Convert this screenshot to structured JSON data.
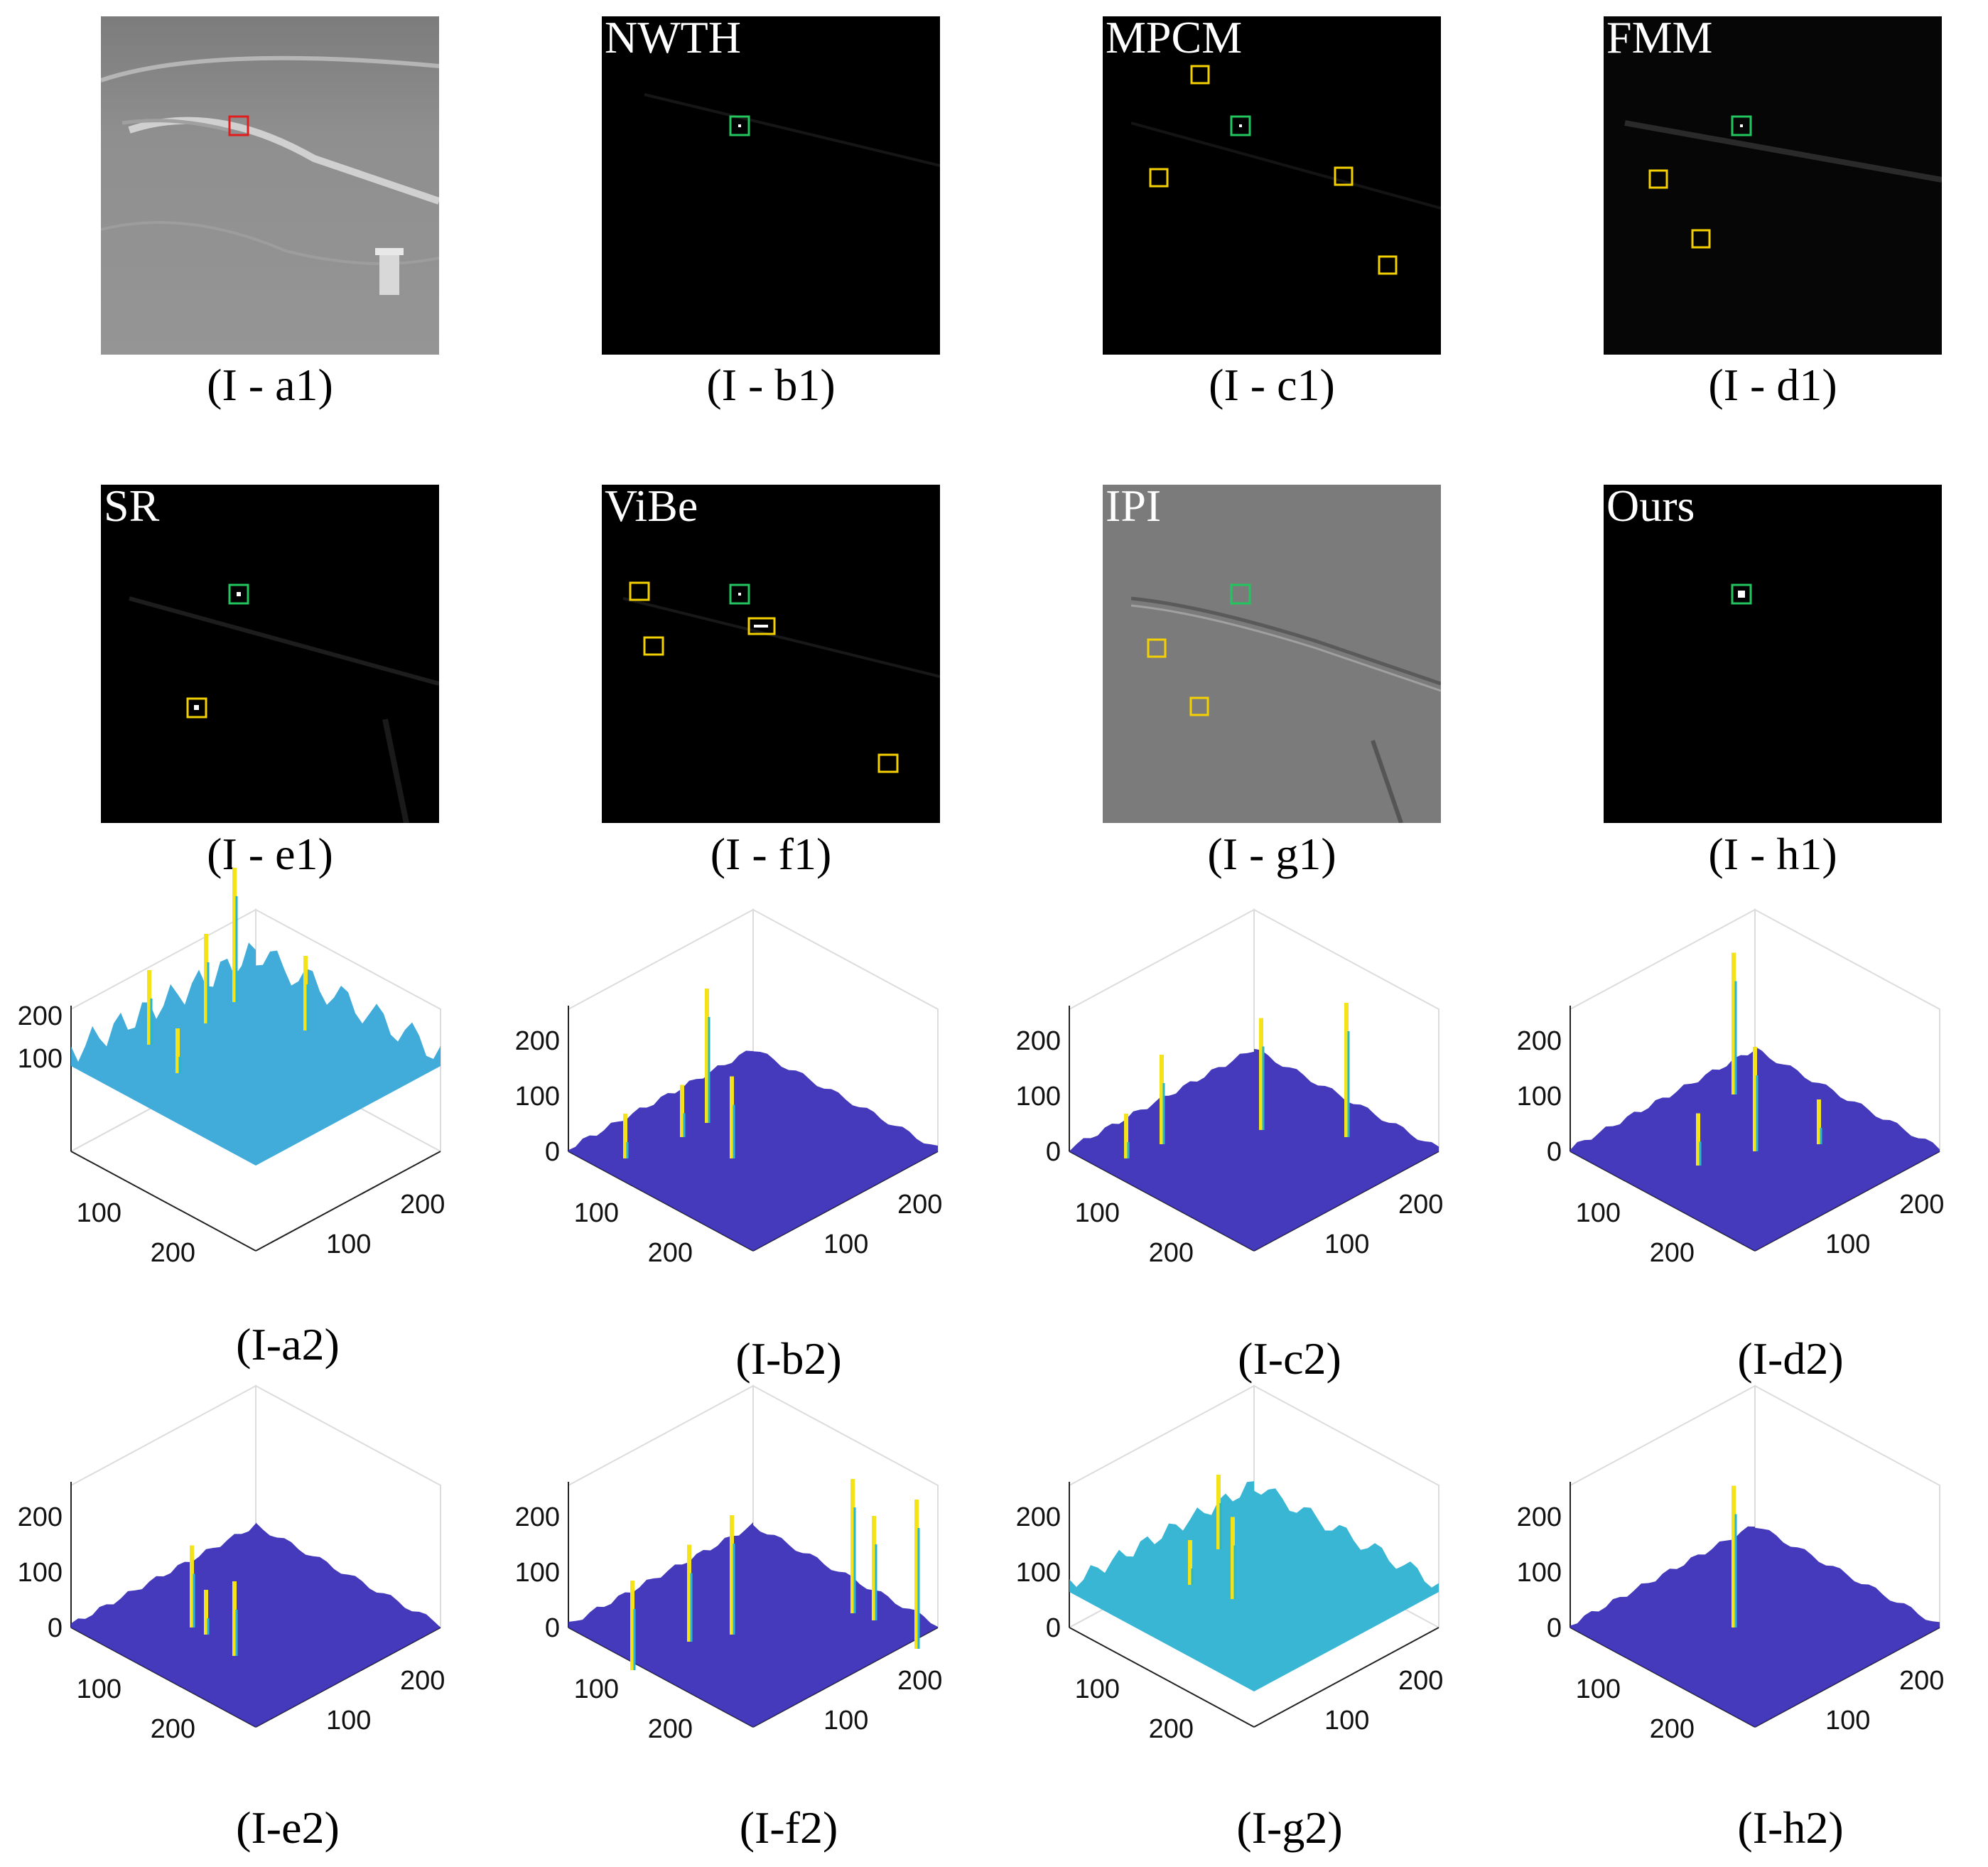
{
  "row1": [
    {
      "caption": "(I - a1)",
      "method": ""
    },
    {
      "caption": "(I - b1)",
      "method": "NWTH"
    },
    {
      "caption": "(I - c1)",
      "method": "MPCM"
    },
    {
      "caption": "(I - d1)",
      "method": "FMM"
    }
  ],
  "row2": [
    {
      "caption": "(I - e1)",
      "method": "SR"
    },
    {
      "caption": "(I - f1)",
      "method": "ViBe"
    },
    {
      "caption": "(I - g1)",
      "method": "IPI"
    },
    {
      "caption": "(I - h1)",
      "method": "Ours"
    }
  ],
  "plots_row1": [
    "(I-a2)",
    "(I-b2)",
    "(I-c2)",
    "(I-d2)"
  ],
  "plots_row2": [
    "(I-e2)",
    "(I-f2)",
    "(I-g2)",
    "(I-h2)"
  ],
  "axis_ticks": {
    "z": [
      "200",
      "100",
      "0"
    ],
    "z_a2": [
      "200",
      "100"
    ],
    "x": [
      "100",
      "200"
    ],
    "y": [
      "100",
      "200"
    ]
  },
  "colors": {
    "box_true": "#22c55e",
    "box_false": "#f5d000",
    "box_input": "#e11d1d",
    "surface_low": "#3b2fb8",
    "surface_mid": "#28b6c8",
    "surface_high": "#f4e21a"
  }
}
